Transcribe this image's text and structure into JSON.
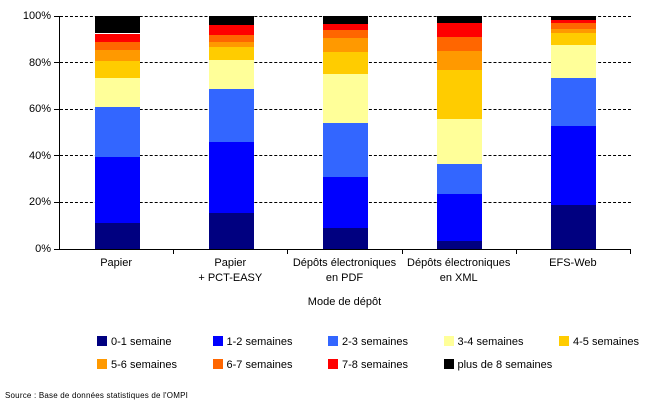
{
  "chart_data": {
    "type": "bar",
    "stacking": "percent",
    "title": "",
    "xlabel": "Mode de dépôt",
    "ylabel": "",
    "ylim": [
      0,
      100
    ],
    "grid": "horizontal dashed lines every 20%",
    "legend_position": "bottom",
    "y_ticks": [
      {
        "label": "0%",
        "value": 0
      },
      {
        "label": "20%",
        "value": 20
      },
      {
        "label": "40%",
        "value": 40
      },
      {
        "label": "60%",
        "value": 60
      },
      {
        "label": "80%",
        "value": 80
      },
      {
        "label": "100%",
        "value": 100
      }
    ],
    "categories": [
      {
        "lines": [
          "Papier"
        ]
      },
      {
        "lines": [
          "Papier",
          "+ PCT-EASY"
        ]
      },
      {
        "lines": [
          "Dépôts électroniques",
          "en PDF"
        ]
      },
      {
        "lines": [
          "Dépôts électroniques",
          "en XML"
        ]
      },
      {
        "lines": [
          "EFS-Web"
        ]
      }
    ],
    "series": [
      {
        "name": "0-1 semaine",
        "color": "#000080",
        "pattern": "crosshatch",
        "values": [
          11,
          15.5,
          9,
          3.5,
          19
        ]
      },
      {
        "name": "1-2 semaines",
        "color": "#0000FF",
        "values": [
          28.5,
          30.5,
          22,
          20,
          34
        ]
      },
      {
        "name": "2-3 semaines",
        "color": "#3366FF",
        "values": [
          21.5,
          22.5,
          23,
          13,
          20.5
        ]
      },
      {
        "name": "3-4 semaines",
        "color": "#FFFF99",
        "values": [
          12.5,
          12.5,
          21,
          19.5,
          14
        ]
      },
      {
        "name": "4-5 semaines",
        "color": "#FFCC00",
        "values": [
          7,
          5.5,
          9.5,
          21,
          5
        ]
      },
      {
        "name": "5-6 semaines",
        "color": "#FF9900",
        "values": [
          5,
          2.5,
          6,
          8,
          2
        ]
      },
      {
        "name": "6-7 semaines",
        "color": "#FF6600",
        "values": [
          3.5,
          3,
          3.5,
          6,
          2.5
        ]
      },
      {
        "name": "7-8 semaines",
        "color": "#FF0000",
        "values": [
          3.5,
          4,
          2.5,
          6,
          1.5
        ]
      },
      {
        "name": "plus de 8 semaines",
        "color": "#000000",
        "values": [
          7.5,
          4,
          3.5,
          3,
          1.5
        ]
      }
    ],
    "values_unit": "percent of filings"
  },
  "source": "Source : Base de données statistiques de l'OMPI"
}
